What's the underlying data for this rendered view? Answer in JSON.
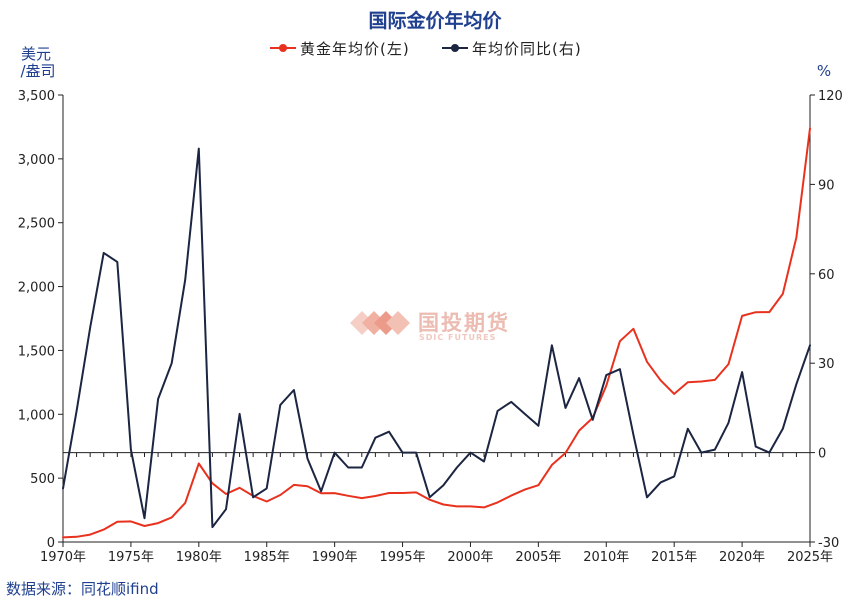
{
  "chart_data": {
    "type": "line",
    "title": "国际金价年均价",
    "legend_position": "top-center",
    "grid": false,
    "left_axis_unit_line1": "美元",
    "left_axis_unit_line2": "/盎司",
    "right_axis_unit": "%",
    "left_ylim": [
      0,
      3500
    ],
    "left_ticks": [
      "0",
      "500",
      "1,000",
      "1,500",
      "2,000",
      "2,500",
      "3,000",
      "3,500"
    ],
    "right_ylim": [
      -30,
      120
    ],
    "right_ticks": [
      "-30",
      "0",
      "30",
      "60",
      "90",
      "120"
    ],
    "x_range": [
      1970,
      2025
    ],
    "x_tick_years": [
      1970,
      1975,
      1980,
      1985,
      1990,
      1995,
      2000,
      2005,
      2010,
      2015,
      2020,
      2025
    ],
    "x_tick_labels": [
      "1970年",
      "1975年",
      "1980年",
      "1985年",
      "1990年",
      "1995年",
      "2000年",
      "2005年",
      "2010年",
      "2015年",
      "2020年",
      "2025年"
    ],
    "x": [
      1970,
      1971,
      1972,
      1973,
      1974,
      1975,
      1976,
      1977,
      1978,
      1979,
      1980,
      1981,
      1982,
      1983,
      1984,
      1985,
      1986,
      1987,
      1988,
      1989,
      1990,
      1991,
      1992,
      1993,
      1994,
      1995,
      1996,
      1997,
      1998,
      1999,
      2000,
      2001,
      2002,
      2003,
      2004,
      2005,
      2006,
      2007,
      2008,
      2009,
      2010,
      2011,
      2012,
      2013,
      2014,
      2015,
      2016,
      2017,
      2018,
      2019,
      2020,
      2021,
      2022,
      2023,
      2024,
      2025
    ],
    "series": [
      {
        "name": "黄金年均价(左)",
        "axis": "left",
        "color": "#e8321e",
        "values": [
          36,
          41,
          58,
          97,
          159,
          161,
          125,
          148,
          193,
          306,
          615,
          460,
          376,
          424,
          361,
          317,
          368,
          447,
          437,
          381,
          383,
          362,
          344,
          360,
          384,
          384,
          388,
          331,
          294,
          279,
          279,
          271,
          310,
          363,
          410,
          445,
          604,
          697,
          872,
          972,
          1225,
          1572,
          1669,
          1411,
          1266,
          1160,
          1251,
          1257,
          1269,
          1393,
          1770,
          1799,
          1800,
          1943,
          2386,
          3240
        ]
      },
      {
        "name": "年均价同比(右)",
        "axis": "right",
        "color": "#1c2541",
        "values": [
          -12,
          14,
          42,
          67,
          64,
          1,
          -22,
          18,
          30,
          58,
          102,
          -25,
          -19,
          13,
          -15,
          -12,
          16,
          21,
          -2,
          -13,
          0,
          -5,
          -5,
          5,
          7,
          0,
          0,
          -15,
          -11,
          -5,
          0,
          -3,
          14,
          17,
          13,
          9,
          36,
          15,
          25,
          11,
          26,
          28,
          6,
          -15,
          -10,
          -8,
          8,
          0,
          1,
          10,
          27,
          2,
          0,
          8,
          23,
          36
        ]
      }
    ]
  },
  "source_text": "数据来源：同花顺ifind",
  "watermark": {
    "name": "国投期货",
    "sub": "SDIC FUTURES"
  }
}
